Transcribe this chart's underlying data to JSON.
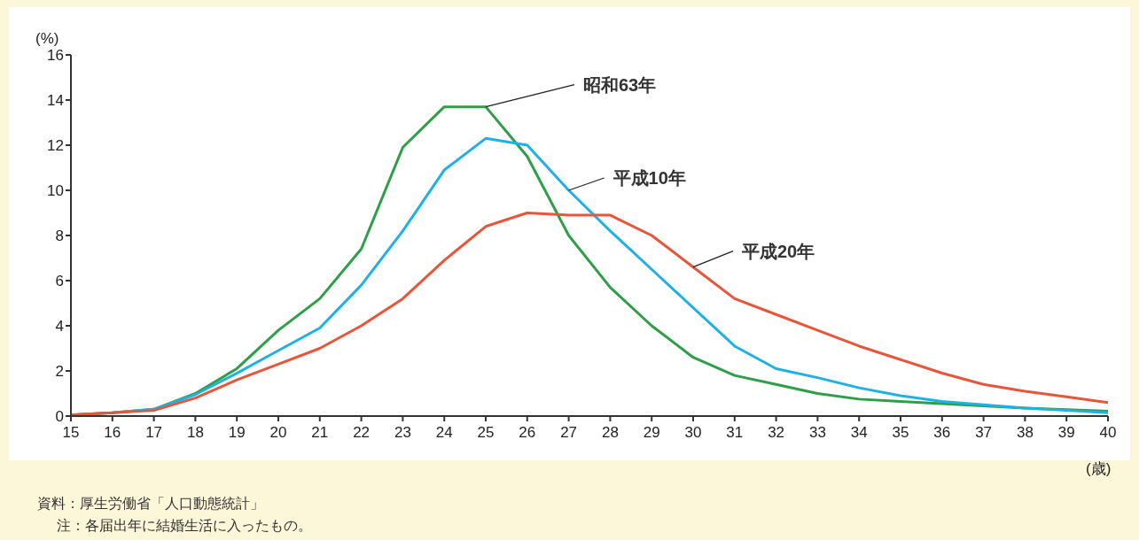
{
  "chart_data": {
    "type": "line",
    "ylabel": "(%)",
    "xlabel": "(歳)",
    "x": [
      15,
      16,
      17,
      18,
      19,
      20,
      21,
      22,
      23,
      24,
      25,
      26,
      27,
      28,
      29,
      30,
      31,
      32,
      33,
      34,
      35,
      36,
      37,
      38,
      39,
      40
    ],
    "xlim": [
      15,
      40
    ],
    "xticks": [
      15,
      16,
      17,
      18,
      19,
      20,
      21,
      22,
      23,
      24,
      25,
      26,
      27,
      28,
      29,
      30,
      31,
      32,
      33,
      34,
      35,
      36,
      37,
      38,
      39,
      40
    ],
    "ylim": [
      0,
      16
    ],
    "yticks": [
      0,
      2,
      4,
      6,
      8,
      10,
      12,
      14,
      16
    ],
    "marker": "none",
    "line_style": "solid",
    "series": [
      {
        "name": "昭和63年",
        "color": "#2e9e48",
        "values": [
          0.05,
          0.15,
          0.3,
          1.0,
          2.1,
          3.8,
          5.2,
          7.4,
          11.9,
          13.7,
          13.7,
          11.5,
          8.0,
          5.7,
          4.0,
          2.6,
          1.8,
          1.4,
          1.0,
          0.75,
          0.65,
          0.55,
          0.45,
          0.35,
          0.28,
          0.22
        ]
      },
      {
        "name": "平成10年",
        "color": "#1fb0e6",
        "values": [
          0.05,
          0.15,
          0.3,
          0.95,
          1.9,
          2.9,
          3.9,
          5.8,
          8.2,
          10.9,
          12.3,
          12.0,
          10.0,
          8.2,
          6.5,
          4.8,
          3.1,
          2.1,
          1.7,
          1.25,
          0.9,
          0.65,
          0.5,
          0.35,
          0.25,
          0.15
        ]
      },
      {
        "name": "平成20年",
        "color": "#e8553a",
        "values": [
          0.05,
          0.15,
          0.25,
          0.8,
          1.6,
          2.3,
          3.0,
          4.0,
          5.2,
          6.9,
          8.4,
          9.0,
          8.9,
          8.9,
          8.0,
          6.6,
          5.2,
          4.5,
          3.8,
          3.1,
          2.5,
          1.9,
          1.4,
          1.1,
          0.85,
          0.6
        ]
      }
    ],
    "annotations": [
      "資料：厚生労働省「人口動態統計」",
      "注：各届出年に結婚生活に入ったもの。"
    ]
  }
}
